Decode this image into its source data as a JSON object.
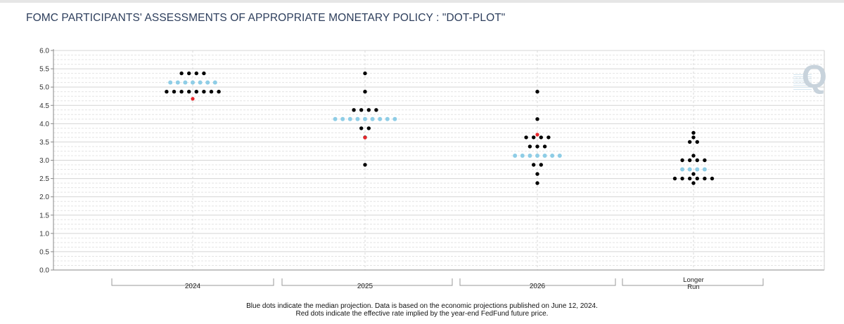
{
  "title": "FOMC PARTICIPANTS' ASSESSMENTS OF APPROPRIATE MONETARY POLICY : \"DOT-PLOT\"",
  "footnote_line1": "Blue dots indicate the median projection. Data is based on the economic projections published on June 12, 2024.",
  "footnote_line2": "Red dots indicate the effective rate implied by the year-end FedFund future price.",
  "logo_text": "Q",
  "logo_icon": "q-logo-icon",
  "colors": {
    "dot": "#000000",
    "median": "#8ecde6",
    "implied": "#e8262b",
    "grid_major": "#d4d4d4",
    "grid_minor": "#e4e4e4",
    "axis": "#888888",
    "title": "#2d3e5c"
  },
  "chart_data": {
    "type": "scatter",
    "title": "FOMC PARTICIPANTS' ASSESSMENTS OF APPROPRIATE MONETARY POLICY : \"DOT-PLOT\"",
    "xlabel": "",
    "ylabel": "",
    "ylim": [
      0,
      6
    ],
    "yticks": [
      "0.0",
      "0.5",
      "1.0",
      "1.5",
      "2.0",
      "2.5",
      "3.0",
      "3.5",
      "4.0",
      "4.5",
      "5.0",
      "5.5",
      "6.0"
    ],
    "grid": true,
    "categories": [
      {
        "label": "2024",
        "dots": [
          {
            "y": 5.375,
            "count": 4
          },
          {
            "y": 4.875,
            "count": 8
          }
        ],
        "median": [
          {
            "y": 5.125,
            "count": 7
          }
        ],
        "implied": 4.68
      },
      {
        "label": "2025",
        "dots": [
          {
            "y": 5.375,
            "count": 1
          },
          {
            "y": 4.875,
            "count": 1
          },
          {
            "y": 4.375,
            "count": 4
          },
          {
            "y": 3.875,
            "count": 2
          },
          {
            "y": 3.625,
            "count": 1
          },
          {
            "y": 2.875,
            "count": 1
          }
        ],
        "median": [
          {
            "y": 4.125,
            "count": 9
          }
        ],
        "implied": 3.62
      },
      {
        "label": "2026",
        "dots": [
          {
            "y": 4.875,
            "count": 1
          },
          {
            "y": 4.125,
            "count": 1
          },
          {
            "y": 3.625,
            "count": 4
          },
          {
            "y": 3.375,
            "count": 3
          },
          {
            "y": 2.875,
            "count": 2
          },
          {
            "y": 2.625,
            "count": 1
          },
          {
            "y": 2.375,
            "count": 1
          }
        ],
        "median": [
          {
            "y": 3.125,
            "count": 7
          }
        ],
        "implied": 3.7
      },
      {
        "label": "Longer Run",
        "label_lines": [
          "Longer",
          "Run"
        ],
        "dots": [
          {
            "y": 3.75,
            "count": 1
          },
          {
            "y": 3.625,
            "count": 1
          },
          {
            "y": 3.5,
            "count": 2
          },
          {
            "y": 3.125,
            "count": 1
          },
          {
            "y": 3.0,
            "count": 4
          },
          {
            "y": 2.625,
            "count": 1
          },
          {
            "y": 2.5,
            "count": 6
          },
          {
            "y": 2.375,
            "count": 1
          }
        ],
        "median": [
          {
            "y": 2.75,
            "count": 4
          }
        ],
        "implied": null
      }
    ]
  }
}
